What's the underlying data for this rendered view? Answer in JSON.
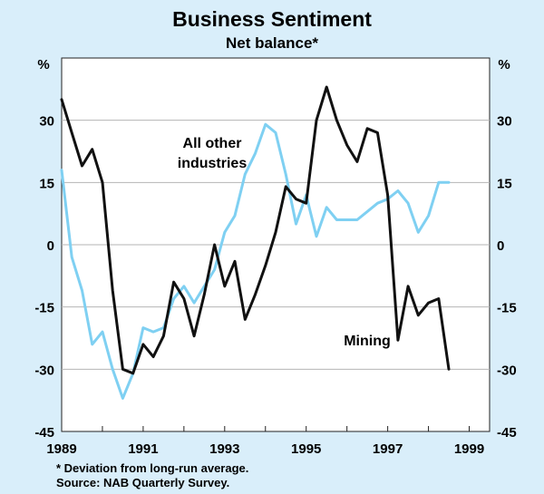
{
  "chart_data": {
    "type": "line",
    "title": "Business Sentiment",
    "subtitle": "Net balance*",
    "ylabel_left": "%",
    "ylabel_right": "%",
    "ylim": [
      -45,
      45
    ],
    "yticks": [
      -45,
      -30,
      -15,
      0,
      15,
      30
    ],
    "xlim": [
      1989,
      1999.5
    ],
    "xticks": [
      1989,
      1991,
      1993,
      1995,
      1997,
      1999
    ],
    "grid": true,
    "series": [
      {
        "name": "Mining",
        "label": "Mining",
        "color": "#111111",
        "x": [
          1989.0,
          1989.25,
          1989.5,
          1989.75,
          1990.0,
          1990.25,
          1990.5,
          1990.75,
          1991.0,
          1991.25,
          1991.5,
          1991.75,
          1992.0,
          1992.25,
          1992.5,
          1992.75,
          1993.0,
          1993.25,
          1993.5,
          1993.75,
          1994.0,
          1994.25,
          1994.5,
          1994.75,
          1995.0,
          1995.25,
          1995.5,
          1995.75,
          1996.0,
          1996.25,
          1996.5,
          1996.75,
          1997.0,
          1997.25,
          1997.5,
          1997.75,
          1998.0,
          1998.25,
          1998.5,
          1998.75
        ],
        "values": [
          35,
          27,
          19,
          23,
          15,
          -11,
          -30,
          -31,
          -24,
          -27,
          -22,
          -9,
          -13,
          -22,
          -12,
          0,
          -10,
          -4,
          -18,
          -12,
          -5,
          3,
          14,
          11,
          10,
          30,
          38,
          30,
          24,
          20,
          28,
          27,
          12,
          -23,
          -10,
          -17,
          -14,
          -13,
          -30,
          null
        ]
      },
      {
        "name": "All other industries",
        "label": "All other industries",
        "color": "#7fd0f2",
        "x": [
          1989.0,
          1989.25,
          1989.5,
          1989.75,
          1990.0,
          1990.25,
          1990.5,
          1990.75,
          1991.0,
          1991.25,
          1991.5,
          1991.75,
          1992.0,
          1992.25,
          1992.5,
          1992.75,
          1993.0,
          1993.25,
          1993.5,
          1993.75,
          1994.0,
          1994.25,
          1994.5,
          1994.75,
          1995.0,
          1995.25,
          1995.5,
          1995.75,
          1996.0,
          1996.25,
          1996.5,
          1996.75,
          1997.0,
          1997.25,
          1997.5,
          1997.75,
          1998.0,
          1998.25,
          1998.5,
          1998.75
        ],
        "values": [
          18,
          -3,
          -11,
          -24,
          -21,
          -30,
          -37,
          -31,
          -20,
          -21,
          -20,
          -13,
          -10,
          -14,
          -10,
          -6,
          3,
          7,
          17,
          22,
          29,
          27,
          17,
          5,
          12,
          2,
          9,
          6,
          6,
          6,
          8,
          10,
          11,
          13,
          10,
          3,
          7,
          15,
          15,
          null
        ]
      }
    ],
    "annotations": {
      "all_other_line1": "All other",
      "all_other_line2": "industries",
      "mining": "Mining"
    },
    "footnote": "* Deviation from long-run average.",
    "source": "Source: NAB Quarterly Survey."
  }
}
